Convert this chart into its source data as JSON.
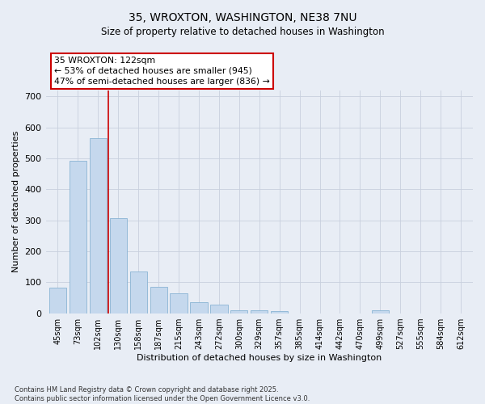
{
  "title": "35, WROXTON, WASHINGTON, NE38 7NU",
  "subtitle": "Size of property relative to detached houses in Washington",
  "xlabel": "Distribution of detached houses by size in Washington",
  "ylabel": "Number of detached properties",
  "categories": [
    "45sqm",
    "73sqm",
    "102sqm",
    "130sqm",
    "158sqm",
    "187sqm",
    "215sqm",
    "243sqm",
    "272sqm",
    "300sqm",
    "329sqm",
    "357sqm",
    "385sqm",
    "414sqm",
    "442sqm",
    "470sqm",
    "499sqm",
    "527sqm",
    "555sqm",
    "584sqm",
    "612sqm"
  ],
  "values": [
    82,
    493,
    565,
    308,
    135,
    85,
    65,
    35,
    27,
    10,
    10,
    6,
    0,
    0,
    0,
    0,
    9,
    0,
    0,
    0,
    0
  ],
  "bar_color": "#c5d8ed",
  "bar_edge_color": "#8ab4d4",
  "background_color": "#e8edf5",
  "grid_color": "#c8d0de",
  "vline_x_index": 2.5,
  "annotation_title": "35 WROXTON: 122sqm",
  "annotation_line1": "← 53% of detached houses are smaller (945)",
  "annotation_line2": "47% of semi-detached houses are larger (836) →",
  "annotation_box_edgecolor": "#cc0000",
  "ylim": [
    0,
    720
  ],
  "yticks": [
    0,
    100,
    200,
    300,
    400,
    500,
    600,
    700
  ],
  "footnote1": "Contains HM Land Registry data © Crown copyright and database right 2025.",
  "footnote2": "Contains public sector information licensed under the Open Government Licence v3.0."
}
